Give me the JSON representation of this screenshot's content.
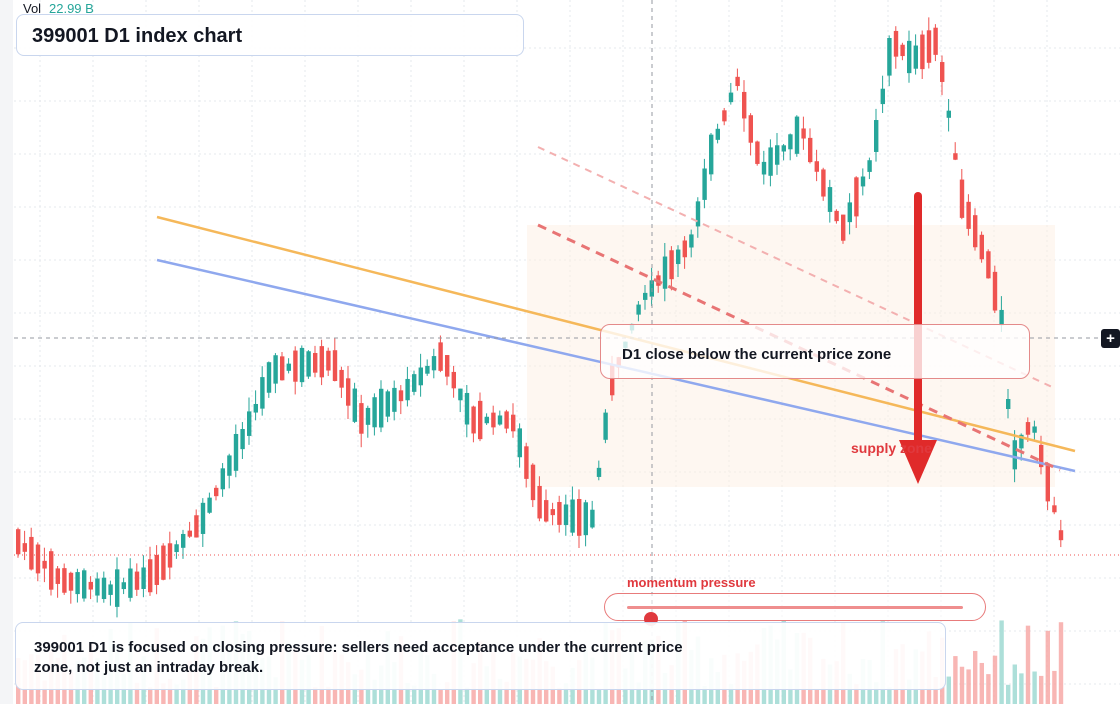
{
  "header": {
    "vol_label": "Vol",
    "vol_value": "22.99 B",
    "title": "399001 D1 index chart"
  },
  "annotations": {
    "zone_text": "D1 close below the current price zone",
    "supply_label": "supply zone",
    "momentum_label": "momentum pressure",
    "momentum_level": 0.07,
    "note": "399001 D1 is focused on closing pressure: sellers need acceptance under the current price zone, not just an intraday break."
  },
  "colors": {
    "up": "#26a69a",
    "down": "#ef5350",
    "accent_red": "#e0393e",
    "trend_orange": "#f5b85a",
    "trend_blue": "#8fa8ee"
  },
  "icons": {
    "crosshair_button": "crosshair-plus-icon"
  },
  "chart_data": {
    "type": "candlestick",
    "grid": true,
    "candle_count": 160,
    "overlays": [
      "orange trendline",
      "blue trendline",
      "dashed red channel",
      "supply zone",
      "down arrow"
    ]
  }
}
